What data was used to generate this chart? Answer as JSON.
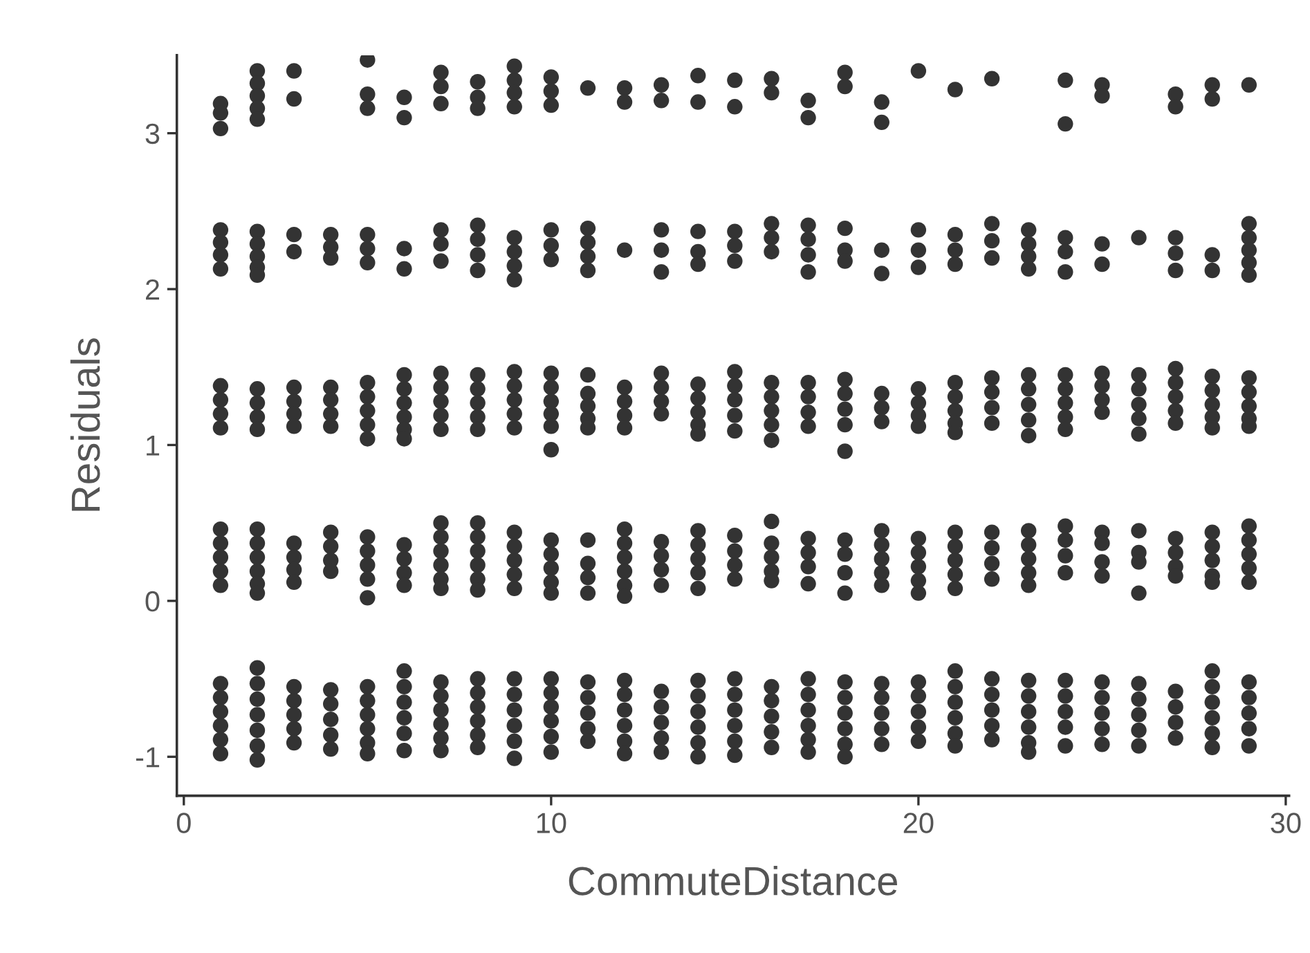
{
  "chart_data": {
    "type": "scatter",
    "xlabel": "CommuteDistance",
    "ylabel": "Residuals",
    "xlim": [
      -0.19,
      30.09
    ],
    "ylim": [
      -1.25,
      3.5
    ],
    "xticks": [
      0,
      10,
      20,
      30
    ],
    "yticks": [
      {
        "value": -1,
        "label": "-1"
      },
      0,
      1,
      2,
      3
    ],
    "marker": "circle",
    "series": [
      {
        "color": "#333333",
        "x": [
          1,
          1,
          1,
          2,
          2,
          2,
          2,
          2,
          3,
          3,
          5,
          5,
          5,
          6,
          6,
          7,
          7,
          7,
          8,
          8,
          8,
          9,
          9,
          9,
          9,
          10,
          10,
          10,
          11,
          12,
          12,
          13,
          13,
          14,
          14,
          15,
          15,
          16,
          16,
          17,
          17,
          18,
          18,
          19,
          19,
          20,
          21,
          22,
          24,
          24,
          25,
          25,
          27,
          27,
          28,
          28,
          29
        ],
        "values": [
          3.19,
          3.13,
          3.03,
          3.4,
          3.32,
          3.24,
          3.16,
          3.09,
          3.4,
          3.22,
          3.47,
          3.25,
          3.16,
          3.23,
          3.1,
          3.39,
          3.3,
          3.19,
          3.33,
          3.23,
          3.16,
          3.43,
          3.34,
          3.26,
          3.17,
          3.36,
          3.27,
          3.18,
          3.29,
          3.29,
          3.2,
          3.31,
          3.21,
          3.37,
          3.2,
          3.34,
          3.17,
          3.35,
          3.26,
          3.21,
          3.1,
          3.39,
          3.3,
          3.2,
          3.07,
          3.4,
          3.28,
          3.35,
          3.34,
          3.06,
          3.31,
          3.24,
          3.25,
          3.17,
          3.31,
          3.22,
          3.31
        ]
      },
      {
        "color": "#333333",
        "x": [
          1,
          1,
          1,
          1,
          2,
          2,
          2,
          2,
          2,
          3,
          3,
          4,
          4,
          4,
          5,
          5,
          5,
          6,
          6,
          7,
          7,
          7,
          8,
          8,
          8,
          8,
          9,
          9,
          9,
          9,
          10,
          10,
          10,
          11,
          11,
          11,
          11,
          12,
          13,
          13,
          13,
          14,
          14,
          14,
          15,
          15,
          15,
          16,
          16,
          16,
          17,
          17,
          17,
          17,
          18,
          18,
          18,
          19,
          19,
          20,
          20,
          20,
          21,
          21,
          21,
          22,
          22,
          22,
          23,
          23,
          23,
          23,
          24,
          24,
          24,
          25,
          25,
          26,
          27,
          27,
          27,
          28,
          28,
          29,
          29,
          29,
          29,
          29
        ],
        "values": [
          2.38,
          2.3,
          2.22,
          2.13,
          2.37,
          2.29,
          2.21,
          2.14,
          2.09,
          2.35,
          2.24,
          2.35,
          2.27,
          2.2,
          2.35,
          2.26,
          2.17,
          2.26,
          2.13,
          2.38,
          2.29,
          2.18,
          2.41,
          2.32,
          2.22,
          2.12,
          2.33,
          2.24,
          2.15,
          2.06,
          2.38,
          2.28,
          2.19,
          2.39,
          2.3,
          2.21,
          2.12,
          2.25,
          2.38,
          2.25,
          2.11,
          2.37,
          2.24,
          2.16,
          2.37,
          2.28,
          2.18,
          2.42,
          2.33,
          2.24,
          2.41,
          2.32,
          2.22,
          2.11,
          2.39,
          2.25,
          2.18,
          2.25,
          2.1,
          2.38,
          2.25,
          2.14,
          2.35,
          2.25,
          2.16,
          2.42,
          2.31,
          2.2,
          2.38,
          2.29,
          2.21,
          2.13,
          2.33,
          2.24,
          2.11,
          2.29,
          2.16,
          2.33,
          2.33,
          2.23,
          2.12,
          2.22,
          2.12,
          2.42,
          2.33,
          2.25,
          2.17,
          2.09
        ]
      },
      {
        "color": "#333333",
        "x": [
          1,
          1,
          1,
          1,
          2,
          2,
          2,
          2,
          3,
          3,
          3,
          3,
          4,
          4,
          4,
          4,
          5,
          5,
          5,
          5,
          5,
          6,
          6,
          6,
          6,
          6,
          6,
          7,
          7,
          7,
          7,
          7,
          8,
          8,
          8,
          8,
          8,
          9,
          9,
          9,
          9,
          9,
          10,
          10,
          10,
          10,
          10,
          10,
          11,
          11,
          11,
          11,
          11,
          12,
          12,
          12,
          12,
          13,
          13,
          13,
          13,
          14,
          14,
          14,
          14,
          14,
          15,
          15,
          15,
          15,
          15,
          16,
          16,
          16,
          16,
          16,
          17,
          17,
          17,
          17,
          18,
          18,
          18,
          18,
          18,
          19,
          19,
          19,
          20,
          20,
          20,
          20,
          21,
          21,
          21,
          21,
          21,
          22,
          22,
          22,
          22,
          23,
          23,
          23,
          23,
          23,
          24,
          24,
          24,
          24,
          24,
          25,
          25,
          25,
          25,
          26,
          26,
          26,
          26,
          26,
          27,
          27,
          27,
          27,
          27,
          28,
          28,
          28,
          28,
          28,
          29,
          29,
          29,
          29,
          29
        ],
        "values": [
          1.38,
          1.29,
          1.2,
          1.11,
          1.36,
          1.27,
          1.18,
          1.1,
          1.37,
          1.28,
          1.2,
          1.12,
          1.37,
          1.29,
          1.2,
          1.12,
          1.4,
          1.31,
          1.22,
          1.13,
          1.04,
          1.45,
          1.36,
          1.27,
          1.18,
          1.1,
          1.04,
          1.46,
          1.37,
          1.28,
          1.19,
          1.1,
          1.45,
          1.36,
          1.27,
          1.18,
          1.1,
          1.47,
          1.38,
          1.29,
          1.2,
          1.11,
          1.46,
          1.37,
          1.28,
          1.2,
          1.12,
          0.97,
          1.45,
          1.33,
          1.25,
          1.17,
          1.11,
          1.37,
          1.28,
          1.19,
          1.11,
          1.46,
          1.37,
          1.28,
          1.2,
          1.39,
          1.3,
          1.21,
          1.13,
          1.07,
          1.47,
          1.38,
          1.29,
          1.19,
          1.09,
          1.4,
          1.31,
          1.22,
          1.13,
          1.03,
          1.4,
          1.31,
          1.21,
          1.12,
          1.42,
          1.33,
          1.23,
          1.13,
          0.96,
          1.33,
          1.24,
          1.15,
          1.36,
          1.27,
          1.19,
          1.12,
          1.4,
          1.31,
          1.22,
          1.14,
          1.08,
          1.43,
          1.34,
          1.24,
          1.14,
          1.45,
          1.36,
          1.26,
          1.16,
          1.06,
          1.45,
          1.36,
          1.27,
          1.18,
          1.1,
          1.46,
          1.38,
          1.29,
          1.21,
          1.45,
          1.36,
          1.26,
          1.17,
          1.07,
          1.49,
          1.4,
          1.31,
          1.22,
          1.14,
          1.44,
          1.35,
          1.26,
          1.18,
          1.11,
          1.43,
          1.34,
          1.25,
          1.17,
          1.12
        ]
      },
      {
        "color": "#333333",
        "x": [
          1,
          1,
          1,
          1,
          1,
          2,
          2,
          2,
          2,
          2,
          2,
          3,
          3,
          3,
          3,
          4,
          4,
          4,
          4,
          5,
          5,
          5,
          5,
          5,
          6,
          6,
          6,
          6,
          7,
          7,
          7,
          7,
          7,
          7,
          8,
          8,
          8,
          8,
          8,
          8,
          9,
          9,
          9,
          9,
          9,
          10,
          10,
          10,
          10,
          10,
          11,
          11,
          11,
          11,
          12,
          12,
          12,
          12,
          12,
          12,
          13,
          13,
          13,
          13,
          14,
          14,
          14,
          14,
          14,
          15,
          15,
          15,
          15,
          16,
          16,
          16,
          16,
          16,
          17,
          17,
          17,
          17,
          18,
          18,
          18,
          18,
          19,
          19,
          19,
          19,
          19,
          20,
          20,
          20,
          20,
          20,
          21,
          21,
          21,
          21,
          21,
          22,
          22,
          22,
          22,
          23,
          23,
          23,
          23,
          23,
          24,
          24,
          24,
          24,
          25,
          25,
          25,
          25,
          26,
          26,
          26,
          26,
          27,
          27,
          27,
          27,
          28,
          28,
          28,
          28,
          28,
          29,
          29,
          29,
          29,
          29
        ],
        "values": [
          0.46,
          0.37,
          0.28,
          0.19,
          0.1,
          0.46,
          0.37,
          0.28,
          0.19,
          0.11,
          0.05,
          0.37,
          0.28,
          0.2,
          0.12,
          0.44,
          0.35,
          0.26,
          0.19,
          0.41,
          0.32,
          0.23,
          0.14,
          0.02,
          0.36,
          0.27,
          0.18,
          0.1,
          0.5,
          0.41,
          0.32,
          0.23,
          0.14,
          0.08,
          0.5,
          0.41,
          0.32,
          0.23,
          0.14,
          0.07,
          0.44,
          0.35,
          0.26,
          0.17,
          0.08,
          0.39,
          0.3,
          0.21,
          0.12,
          0.05,
          0.39,
          0.24,
          0.15,
          0.05,
          0.46,
          0.37,
          0.28,
          0.19,
          0.1,
          0.03,
          0.38,
          0.29,
          0.2,
          0.1,
          0.45,
          0.36,
          0.27,
          0.18,
          0.08,
          0.42,
          0.32,
          0.23,
          0.14,
          0.51,
          0.37,
          0.28,
          0.19,
          0.13,
          0.4,
          0.31,
          0.22,
          0.11,
          0.39,
          0.3,
          0.18,
          0.05,
          0.45,
          0.36,
          0.27,
          0.18,
          0.1,
          0.4,
          0.31,
          0.22,
          0.13,
          0.05,
          0.44,
          0.35,
          0.26,
          0.17,
          0.08,
          0.44,
          0.34,
          0.24,
          0.14,
          0.45,
          0.36,
          0.27,
          0.18,
          0.1,
          0.48,
          0.39,
          0.29,
          0.18,
          0.44,
          0.37,
          0.25,
          0.16,
          0.45,
          0.31,
          0.25,
          0.05,
          0.4,
          0.31,
          0.22,
          0.16,
          0.44,
          0.35,
          0.26,
          0.16,
          0.12,
          0.48,
          0.39,
          0.3,
          0.21,
          0.12
        ]
      },
      {
        "color": "#333333",
        "x": [
          1,
          1,
          1,
          1,
          1,
          1,
          2,
          2,
          2,
          2,
          2,
          2,
          2,
          3,
          3,
          3,
          3,
          3,
          4,
          4,
          4,
          4,
          4,
          5,
          5,
          5,
          5,
          5,
          5,
          6,
          6,
          6,
          6,
          6,
          6,
          7,
          7,
          7,
          7,
          7,
          7,
          8,
          8,
          8,
          8,
          8,
          8,
          9,
          9,
          9,
          9,
          9,
          9,
          10,
          10,
          10,
          10,
          10,
          10,
          11,
          11,
          11,
          11,
          11,
          12,
          12,
          12,
          12,
          12,
          12,
          13,
          13,
          13,
          13,
          13,
          14,
          14,
          14,
          14,
          14,
          14,
          15,
          15,
          15,
          15,
          15,
          15,
          16,
          16,
          16,
          16,
          16,
          17,
          17,
          17,
          17,
          17,
          17,
          18,
          18,
          18,
          18,
          18,
          18,
          19,
          19,
          19,
          19,
          19,
          20,
          20,
          20,
          20,
          20,
          21,
          21,
          21,
          21,
          21,
          21,
          22,
          22,
          22,
          22,
          22,
          23,
          23,
          23,
          23,
          23,
          23,
          24,
          24,
          24,
          24,
          24,
          25,
          25,
          25,
          25,
          25,
          26,
          26,
          26,
          26,
          26,
          27,
          27,
          27,
          27,
          28,
          28,
          28,
          28,
          28,
          28,
          29,
          29,
          29,
          29,
          29
        ],
        "values": [
          -0.53,
          -0.62,
          -0.71,
          -0.8,
          -0.89,
          -0.98,
          -0.43,
          -0.53,
          -0.63,
          -0.73,
          -0.83,
          -0.93,
          -1.02,
          -0.55,
          -0.64,
          -0.73,
          -0.82,
          -0.91,
          -0.57,
          -0.66,
          -0.76,
          -0.86,
          -0.95,
          -0.55,
          -0.64,
          -0.73,
          -0.82,
          -0.91,
          -0.98,
          -0.45,
          -0.55,
          -0.65,
          -0.75,
          -0.85,
          -0.96,
          -0.52,
          -0.61,
          -0.7,
          -0.79,
          -0.88,
          -0.96,
          -0.5,
          -0.59,
          -0.68,
          -0.77,
          -0.86,
          -0.94,
          -0.5,
          -0.6,
          -0.7,
          -0.8,
          -0.9,
          -1.01,
          -0.5,
          -0.59,
          -0.68,
          -0.77,
          -0.87,
          -0.97,
          -0.52,
          -0.62,
          -0.72,
          -0.82,
          -0.9,
          -0.51,
          -0.6,
          -0.7,
          -0.8,
          -0.9,
          -0.98,
          -0.58,
          -0.68,
          -0.78,
          -0.88,
          -0.97,
          -0.51,
          -0.61,
          -0.71,
          -0.81,
          -0.91,
          -1.0,
          -0.5,
          -0.6,
          -0.7,
          -0.8,
          -0.9,
          -0.99,
          -0.55,
          -0.64,
          -0.74,
          -0.84,
          -0.94,
          -0.5,
          -0.6,
          -0.7,
          -0.8,
          -0.89,
          -0.97,
          -0.52,
          -0.62,
          -0.72,
          -0.82,
          -0.92,
          -1.0,
          -0.53,
          -0.62,
          -0.72,
          -0.82,
          -0.92,
          -0.52,
          -0.61,
          -0.71,
          -0.81,
          -0.9,
          -0.45,
          -0.55,
          -0.65,
          -0.75,
          -0.85,
          -0.93,
          -0.5,
          -0.6,
          -0.7,
          -0.8,
          -0.89,
          -0.51,
          -0.61,
          -0.71,
          -0.81,
          -0.91,
          -0.97,
          -0.51,
          -0.61,
          -0.71,
          -0.81,
          -0.93,
          -0.52,
          -0.62,
          -0.72,
          -0.82,
          -0.92,
          -0.53,
          -0.63,
          -0.73,
          -0.83,
          -0.93,
          -0.58,
          -0.68,
          -0.78,
          -0.88,
          -0.45,
          -0.55,
          -0.65,
          -0.75,
          -0.85,
          -0.94,
          -0.52,
          -0.62,
          -0.72,
          -0.82,
          -0.93
        ]
      }
    ]
  }
}
